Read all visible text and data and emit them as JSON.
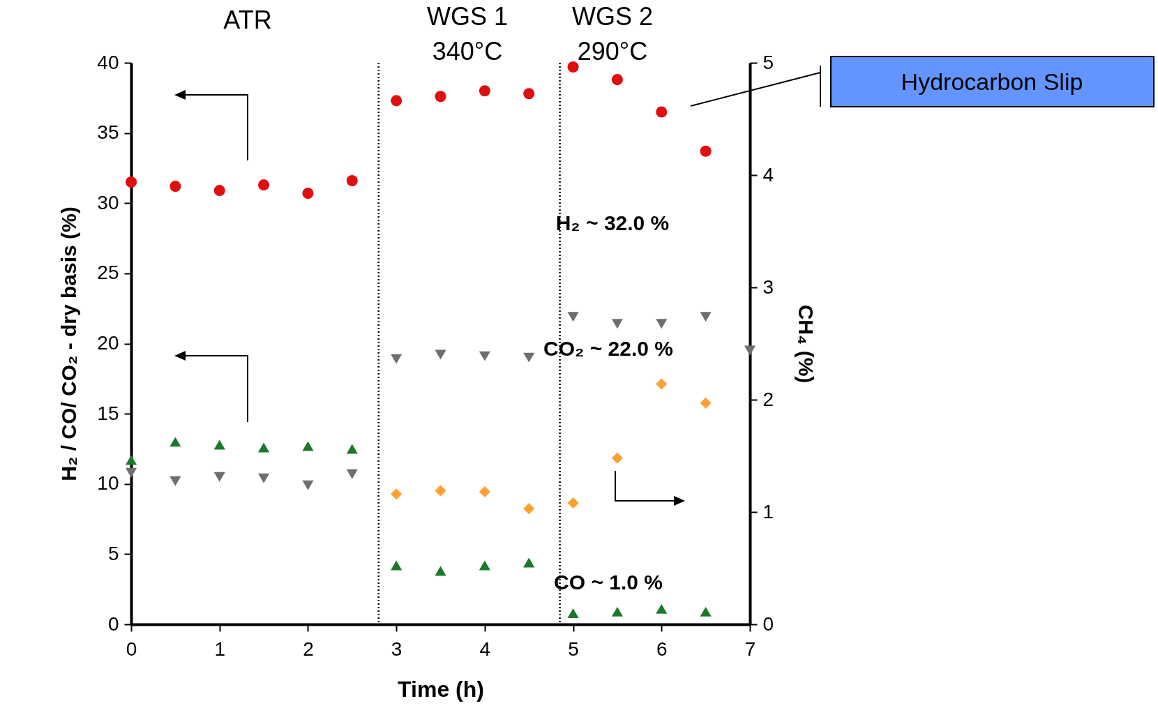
{
  "chart_data": {
    "type": "scatter",
    "xlabel": "Time (h)",
    "ylabel": "H₂ / CO/ CO₂ - dry basis (%)",
    "y2label": "CH₄ (%)",
    "xlim": [
      0,
      7
    ],
    "xticks": [
      0,
      1,
      2,
      3,
      4,
      5,
      6,
      7
    ],
    "ylim": [
      0,
      40
    ],
    "yticks": [
      0,
      5,
      10,
      15,
      20,
      25,
      30,
      35,
      40
    ],
    "y2lim": [
      0,
      5
    ],
    "y2ticks": [
      0,
      1,
      2,
      3,
      4,
      5
    ],
    "series": [
      {
        "color": "#e00f0f",
        "marker": "circle",
        "x": [
          0,
          0.5,
          1,
          1.5,
          2,
          2.5,
          3,
          3.5,
          4,
          4.5,
          5,
          5.5,
          6,
          6.5
        ],
        "values": [
          31.5,
          31.2,
          30.9,
          31.3,
          30.7,
          31.6,
          37.3,
          37.6,
          38.0,
          37.8,
          39.7,
          38.8,
          36.5,
          33.7
        ]
      },
      {
        "color": "#1a7a2a",
        "marker": "triangle",
        "x": [
          0,
          0.5,
          1,
          1.5,
          2,
          2.5,
          3,
          3.5,
          4,
          4.5,
          5,
          5.5,
          6,
          6.5
        ],
        "values": [
          11.7,
          13.0,
          12.8,
          12.6,
          12.7,
          12.5,
          4.2,
          3.8,
          4.2,
          4.4,
          0.8,
          0.9,
          1.1,
          0.9
        ]
      },
      {
        "color": "#6e6e6e",
        "marker": "triangle-down",
        "x": [
          0,
          0.5,
          1,
          1.5,
          2,
          2.5,
          3,
          3.5,
          4,
          4.5,
          5,
          5.5,
          6,
          6.5,
          7
        ],
        "values": [
          10.8,
          10.2,
          10.5,
          10.4,
          9.9,
          10.7,
          18.9,
          19.2,
          19.1,
          19.0,
          21.9,
          21.4,
          21.4,
          21.9,
          19.5
        ]
      },
      {
        "color": "#ffa030",
        "marker": "diamond",
        "axis": "y2",
        "x": [
          3,
          3.5,
          4,
          4.5,
          5,
          5.5,
          6,
          6.5
        ],
        "values": [
          1.16,
          1.19,
          1.18,
          1.03,
          1.08,
          1.48,
          2.14,
          1.97
        ]
      }
    ],
    "ref_lines": [
      {
        "axis": "x",
        "value": 2.8,
        "line_style": "dotted",
        "color": "#000000"
      },
      {
        "axis": "x",
        "value": 4.85,
        "line_style": "dotted",
        "color": "#000000"
      }
    ],
    "annotations": [
      "ATR",
      "WGS 1\n340°C",
      "WGS 2\n290°C",
      "H₂  ~ 32.0 %",
      "CO₂  ~ 22.0 %",
      "CO  ~ 1.0 %",
      "Hydrocarbon Slip"
    ]
  }
}
